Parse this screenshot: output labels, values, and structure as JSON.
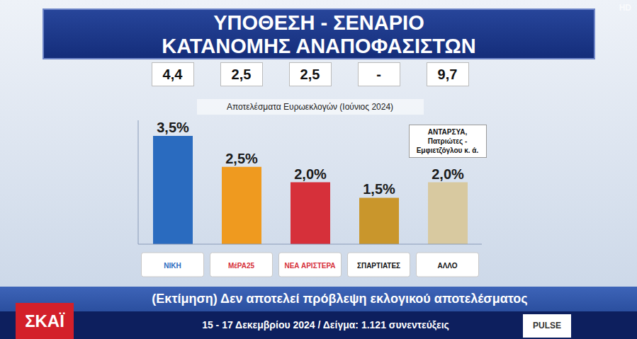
{
  "chart_data": {
    "type": "bar",
    "title": [
      "ΥΠΟΘΕΣΗ - ΣΕΝΑΡΙΟ",
      "ΚΑΤΑΝΟΜΗΣ ΑΝΑΠΟΦΑΣΙΣΤΩΝ"
    ],
    "categories": [
      "ΝΙΚΗ",
      "ΜέΡΑ25",
      "ΝΕΑ ΑΡΙΣΤΕΡΑ",
      "ΣΠΑΡΤΙΑΤΕΣ",
      "ΑΛΛΟ"
    ],
    "values": [
      3.5,
      2.5,
      2.0,
      1.5,
      2.0
    ],
    "value_labels": [
      "3,5%",
      "2,5%",
      "2,0%",
      "1,5%",
      "2,0%"
    ],
    "colors": [
      "#2a6bbf",
      "#ef9a1f",
      "#d6303a",
      "#c9962c",
      "#d8c9a0"
    ],
    "ylim": [
      0,
      4
    ],
    "tick_labels": false,
    "grid": false,
    "data_labels": true,
    "euro_results": {
      "label": "Αποτελέσματα Ευρωεκλογών (Ιούνιος 2024)",
      "values": [
        4.4,
        2.5,
        2.5,
        null,
        9.7
      ],
      "value_labels": [
        "4,4",
        "2,5",
        "2,5",
        "-",
        "9,7"
      ]
    },
    "annotations": [
      {
        "text": "ΑΝΤΑΡΣΥΑ, Πατριώτες - Εμφιετζόγλου κ. ά.",
        "category": "ΑΛΛΟ"
      }
    ]
  },
  "footer": {
    "disclaimer": "(Εκτίμηση) Δεν αποτελεί πρόβλεψη εκλογικού αποτελέσματος",
    "fieldwork": "15 - 17 Δεκεμβρίου 2024 / Δείγμα: 1.121 συνεντεύξεις",
    "broadcaster": "ΣΚΑΪ",
    "pollster": "PULSE",
    "corner": "HD"
  }
}
